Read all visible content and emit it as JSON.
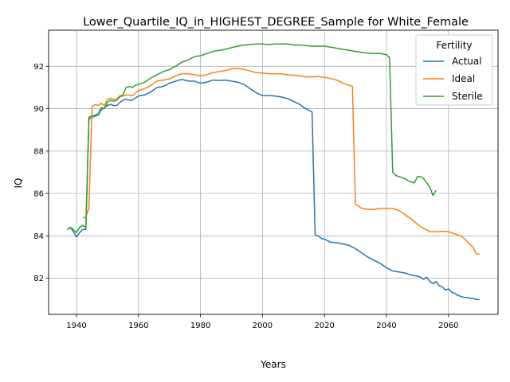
{
  "chart_data": {
    "type": "line",
    "title": "Lower_Quartile_IQ_in_HIGHEST_DEGREE_Sample for White_Female",
    "xlabel": "Years",
    "ylabel": "IQ",
    "xlim": [
      1931,
      2076
    ],
    "ylim": [
      80.3,
      93.7
    ],
    "xticks": [
      1940,
      1960,
      1980,
      2000,
      2020,
      2040,
      2060
    ],
    "yticks": [
      82,
      84,
      86,
      88,
      90,
      92
    ],
    "grid": true,
    "legend": {
      "title": "Fertility",
      "placement": "top-right"
    },
    "series": [
      {
        "name": "Actual",
        "color": "#1f77b4",
        "points": [
          [
            1937,
            84.3
          ],
          [
            1938,
            84.4
          ],
          [
            1939,
            84.2
          ],
          [
            1940,
            83.95
          ],
          [
            1941,
            84.15
          ],
          [
            1942,
            84.3
          ],
          [
            1943,
            84.3
          ],
          [
            1944,
            89.5
          ],
          [
            1945,
            89.6
          ],
          [
            1946,
            89.65
          ],
          [
            1947,
            89.7
          ],
          [
            1948,
            89.95
          ],
          [
            1949,
            90.05
          ],
          [
            1950,
            90.15
          ],
          [
            1951,
            90.2
          ],
          [
            1952,
            90.15
          ],
          [
            1953,
            90.15
          ],
          [
            1954,
            90.3
          ],
          [
            1955,
            90.4
          ],
          [
            1956,
            90.45
          ],
          [
            1957,
            90.4
          ],
          [
            1958,
            90.4
          ],
          [
            1959,
            90.5
          ],
          [
            1960,
            90.6
          ],
          [
            1962,
            90.65
          ],
          [
            1964,
            90.8
          ],
          [
            1966,
            91.0
          ],
          [
            1968,
            91.05
          ],
          [
            1970,
            91.2
          ],
          [
            1972,
            91.3
          ],
          [
            1974,
            91.38
          ],
          [
            1976,
            91.3
          ],
          [
            1978,
            91.3
          ],
          [
            1980,
            91.2
          ],
          [
            1982,
            91.25
          ],
          [
            1984,
            91.35
          ],
          [
            1986,
            91.33
          ],
          [
            1988,
            91.35
          ],
          [
            1990,
            91.3
          ],
          [
            1992,
            91.25
          ],
          [
            1994,
            91.15
          ],
          [
            1996,
            90.95
          ],
          [
            1998,
            90.75
          ],
          [
            2000,
            90.62
          ],
          [
            2002,
            90.62
          ],
          [
            2004,
            90.6
          ],
          [
            2006,
            90.55
          ],
          [
            2008,
            90.48
          ],
          [
            2010,
            90.35
          ],
          [
            2012,
            90.2
          ],
          [
            2014,
            90.0
          ],
          [
            2016,
            89.85
          ],
          [
            2017,
            84.05
          ],
          [
            2018,
            84.0
          ],
          [
            2019,
            83.88
          ],
          [
            2020,
            83.85
          ],
          [
            2022,
            83.7
          ],
          [
            2024,
            83.68
          ],
          [
            2026,
            83.62
          ],
          [
            2028,
            83.55
          ],
          [
            2030,
            83.4
          ],
          [
            2032,
            83.2
          ],
          [
            2034,
            83.0
          ],
          [
            2036,
            82.85
          ],
          [
            2038,
            82.7
          ],
          [
            2040,
            82.5
          ],
          [
            2042,
            82.35
          ],
          [
            2044,
            82.3
          ],
          [
            2046,
            82.25
          ],
          [
            2048,
            82.15
          ],
          [
            2050,
            82.1
          ],
          [
            2051,
            82.05
          ],
          [
            2052,
            81.95
          ],
          [
            2053,
            82.05
          ],
          [
            2054,
            81.85
          ],
          [
            2055,
            81.75
          ],
          [
            2056,
            81.85
          ],
          [
            2057,
            81.65
          ],
          [
            2058,
            81.6
          ],
          [
            2059,
            81.45
          ],
          [
            2060,
            81.5
          ],
          [
            2061,
            81.35
          ],
          [
            2062,
            81.3
          ],
          [
            2063,
            81.2
          ],
          [
            2064,
            81.15
          ],
          [
            2065,
            81.1
          ],
          [
            2066,
            81.1
          ],
          [
            2067,
            81.05
          ],
          [
            2068,
            81.05
          ],
          [
            2069,
            81.0
          ],
          [
            2070,
            81.0
          ]
        ]
      },
      {
        "name": "Ideal",
        "color": "#ff7f0e",
        "points": [
          [
            1942,
            84.85
          ],
          [
            1943,
            84.9
          ],
          [
            1944,
            85.3
          ],
          [
            1945,
            90.1
          ],
          [
            1946,
            90.2
          ],
          [
            1947,
            90.15
          ],
          [
            1948,
            90.25
          ],
          [
            1949,
            90.15
          ],
          [
            1950,
            90.45
          ],
          [
            1951,
            90.5
          ],
          [
            1952,
            90.45
          ],
          [
            1953,
            90.4
          ],
          [
            1954,
            90.55
          ],
          [
            1955,
            90.6
          ],
          [
            1956,
            90.65
          ],
          [
            1957,
            90.65
          ],
          [
            1958,
            90.6
          ],
          [
            1959,
            90.75
          ],
          [
            1960,
            90.85
          ],
          [
            1962,
            90.95
          ],
          [
            1964,
            91.1
          ],
          [
            1966,
            91.3
          ],
          [
            1968,
            91.35
          ],
          [
            1970,
            91.4
          ],
          [
            1972,
            91.55
          ],
          [
            1974,
            91.65
          ],
          [
            1976,
            91.65
          ],
          [
            1978,
            91.6
          ],
          [
            1980,
            91.55
          ],
          [
            1982,
            91.6
          ],
          [
            1984,
            91.7
          ],
          [
            1986,
            91.75
          ],
          [
            1988,
            91.8
          ],
          [
            1990,
            91.88
          ],
          [
            1992,
            91.9
          ],
          [
            1994,
            91.85
          ],
          [
            1996,
            91.78
          ],
          [
            1998,
            91.7
          ],
          [
            2000,
            91.68
          ],
          [
            2002,
            91.65
          ],
          [
            2004,
            91.65
          ],
          [
            2006,
            91.65
          ],
          [
            2008,
            91.6
          ],
          [
            2010,
            91.58
          ],
          [
            2012,
            91.55
          ],
          [
            2014,
            91.5
          ],
          [
            2016,
            91.5
          ],
          [
            2018,
            91.52
          ],
          [
            2020,
            91.48
          ],
          [
            2022,
            91.42
          ],
          [
            2024,
            91.35
          ],
          [
            2026,
            91.2
          ],
          [
            2028,
            91.1
          ],
          [
            2029,
            91.05
          ],
          [
            2030,
            85.5
          ],
          [
            2031,
            85.4
          ],
          [
            2032,
            85.3
          ],
          [
            2034,
            85.25
          ],
          [
            2036,
            85.25
          ],
          [
            2038,
            85.3
          ],
          [
            2040,
            85.3
          ],
          [
            2042,
            85.3
          ],
          [
            2044,
            85.2
          ],
          [
            2046,
            85.0
          ],
          [
            2048,
            84.8
          ],
          [
            2050,
            84.55
          ],
          [
            2052,
            84.35
          ],
          [
            2054,
            84.2
          ],
          [
            2056,
            84.2
          ],
          [
            2058,
            84.22
          ],
          [
            2060,
            84.2
          ],
          [
            2062,
            84.1
          ],
          [
            2064,
            84.0
          ],
          [
            2066,
            83.75
          ],
          [
            2068,
            83.45
          ],
          [
            2069,
            83.15
          ],
          [
            2070,
            83.15
          ]
        ]
      },
      {
        "name": "Sterile",
        "color": "#2ca02c",
        "points": [
          [
            1937,
            84.3
          ],
          [
            1938,
            84.4
          ],
          [
            1939,
            84.3
          ],
          [
            1940,
            84.15
          ],
          [
            1941,
            84.4
          ],
          [
            1942,
            84.5
          ],
          [
            1943,
            84.4
          ],
          [
            1944,
            89.6
          ],
          [
            1945,
            89.65
          ],
          [
            1946,
            89.7
          ],
          [
            1947,
            89.75
          ],
          [
            1948,
            90.05
          ],
          [
            1949,
            90.0
          ],
          [
            1950,
            90.3
          ],
          [
            1951,
            90.4
          ],
          [
            1952,
            90.35
          ],
          [
            1953,
            90.45
          ],
          [
            1954,
            90.6
          ],
          [
            1955,
            90.65
          ],
          [
            1956,
            91.0
          ],
          [
            1957,
            91.05
          ],
          [
            1958,
            91.0
          ],
          [
            1959,
            91.1
          ],
          [
            1960,
            91.15
          ],
          [
            1962,
            91.25
          ],
          [
            1964,
            91.45
          ],
          [
            1966,
            91.6
          ],
          [
            1968,
            91.75
          ],
          [
            1970,
            91.85
          ],
          [
            1972,
            92.0
          ],
          [
            1974,
            92.2
          ],
          [
            1976,
            92.3
          ],
          [
            1978,
            92.45
          ],
          [
            1980,
            92.5
          ],
          [
            1982,
            92.6
          ],
          [
            1984,
            92.7
          ],
          [
            1986,
            92.75
          ],
          [
            1988,
            92.8
          ],
          [
            1990,
            92.88
          ],
          [
            1992,
            92.95
          ],
          [
            1994,
            93.0
          ],
          [
            1996,
            93.02
          ],
          [
            1998,
            93.05
          ],
          [
            2000,
            93.05
          ],
          [
            2002,
            93.02
          ],
          [
            2004,
            93.05
          ],
          [
            2006,
            93.05
          ],
          [
            2008,
            93.05
          ],
          [
            2010,
            93.0
          ],
          [
            2012,
            93.0
          ],
          [
            2014,
            92.98
          ],
          [
            2016,
            92.95
          ],
          [
            2018,
            92.95
          ],
          [
            2020,
            92.95
          ],
          [
            2022,
            92.9
          ],
          [
            2024,
            92.85
          ],
          [
            2026,
            92.8
          ],
          [
            2028,
            92.75
          ],
          [
            2030,
            92.7
          ],
          [
            2032,
            92.65
          ],
          [
            2034,
            92.62
          ],
          [
            2036,
            92.6
          ],
          [
            2038,
            92.6
          ],
          [
            2040,
            92.55
          ],
          [
            2041,
            92.4
          ],
          [
            2042,
            87.0
          ],
          [
            2043,
            86.85
          ],
          [
            2044,
            86.8
          ],
          [
            2046,
            86.7
          ],
          [
            2047,
            86.6
          ],
          [
            2048,
            86.55
          ],
          [
            2049,
            86.5
          ],
          [
            2050,
            86.8
          ],
          [
            2051,
            86.8
          ],
          [
            2052,
            86.7
          ],
          [
            2053,
            86.5
          ],
          [
            2054,
            86.3
          ],
          [
            2055,
            85.9
          ],
          [
            2056,
            86.15
          ]
        ]
      }
    ]
  }
}
